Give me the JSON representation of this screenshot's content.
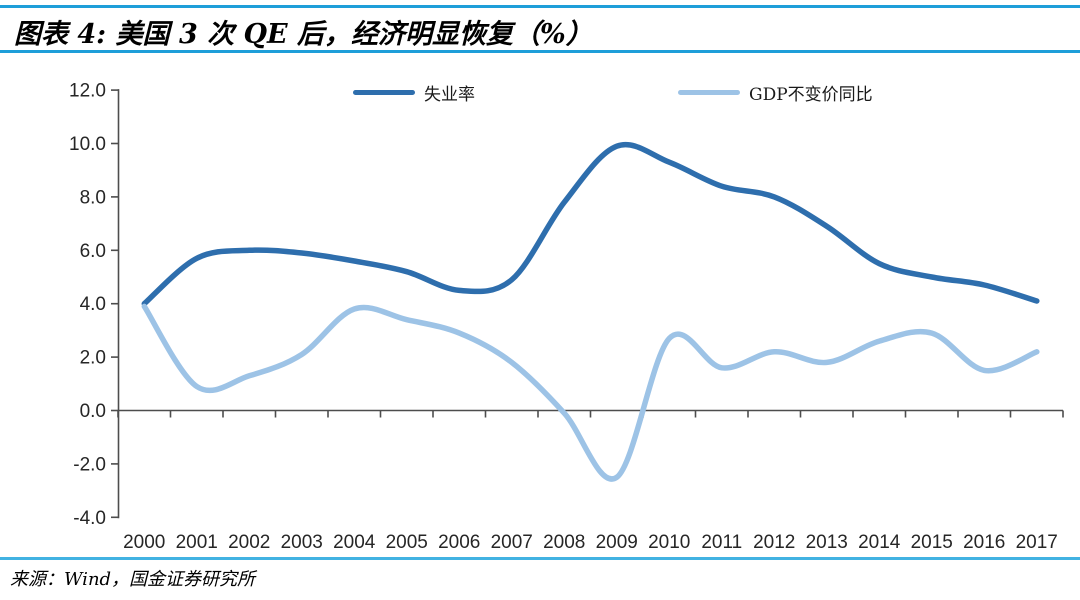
{
  "header": {
    "title": "图表 4: 美国 3 次 QE 后，经济明显恢复（%）"
  },
  "chart_data": {
    "type": "line",
    "title": "美国 3 次 QE 后，经济明显恢复（%）",
    "categories": [
      "2000",
      "2001",
      "2002",
      "2003",
      "2004",
      "2005",
      "2006",
      "2007",
      "2008",
      "2009",
      "2010",
      "2011",
      "2012",
      "2013",
      "2014",
      "2015",
      "2016",
      "2017"
    ],
    "series": [
      {
        "name": "失业率",
        "color": "#2E6EAD",
        "values": [
          4.0,
          5.7,
          6.0,
          5.9,
          5.6,
          5.2,
          4.5,
          4.9,
          7.8,
          9.9,
          9.3,
          8.4,
          8.0,
          6.9,
          5.5,
          5.0,
          4.7,
          4.1
        ]
      },
      {
        "name": "GDP不变价同比",
        "color": "#9DC3E6",
        "values": [
          3.9,
          0.9,
          1.3,
          2.1,
          3.8,
          3.4,
          2.9,
          1.8,
          -0.1,
          -2.5,
          2.7,
          1.6,
          2.2,
          1.8,
          2.6,
          2.9,
          1.5,
          2.2
        ]
      }
    ],
    "ylim": [
      -4.0,
      12.0
    ],
    "ytick_step": 2.0,
    "ytick_labels": [
      "-4.0",
      "-2.0",
      "0.0",
      "2.0",
      "4.0",
      "6.0",
      "8.0",
      "10.0",
      "12.0"
    ],
    "grid": "none",
    "legend_position": "top",
    "line_style": "smooth"
  },
  "footer": {
    "source": "来源：Wind，国金证券研究所"
  },
  "colors": {
    "rule_blue": "#1E9ED9",
    "rule_blue_light": "#41B2E2",
    "axis_line": "#4D4D4D",
    "tick_label": "#262626"
  }
}
